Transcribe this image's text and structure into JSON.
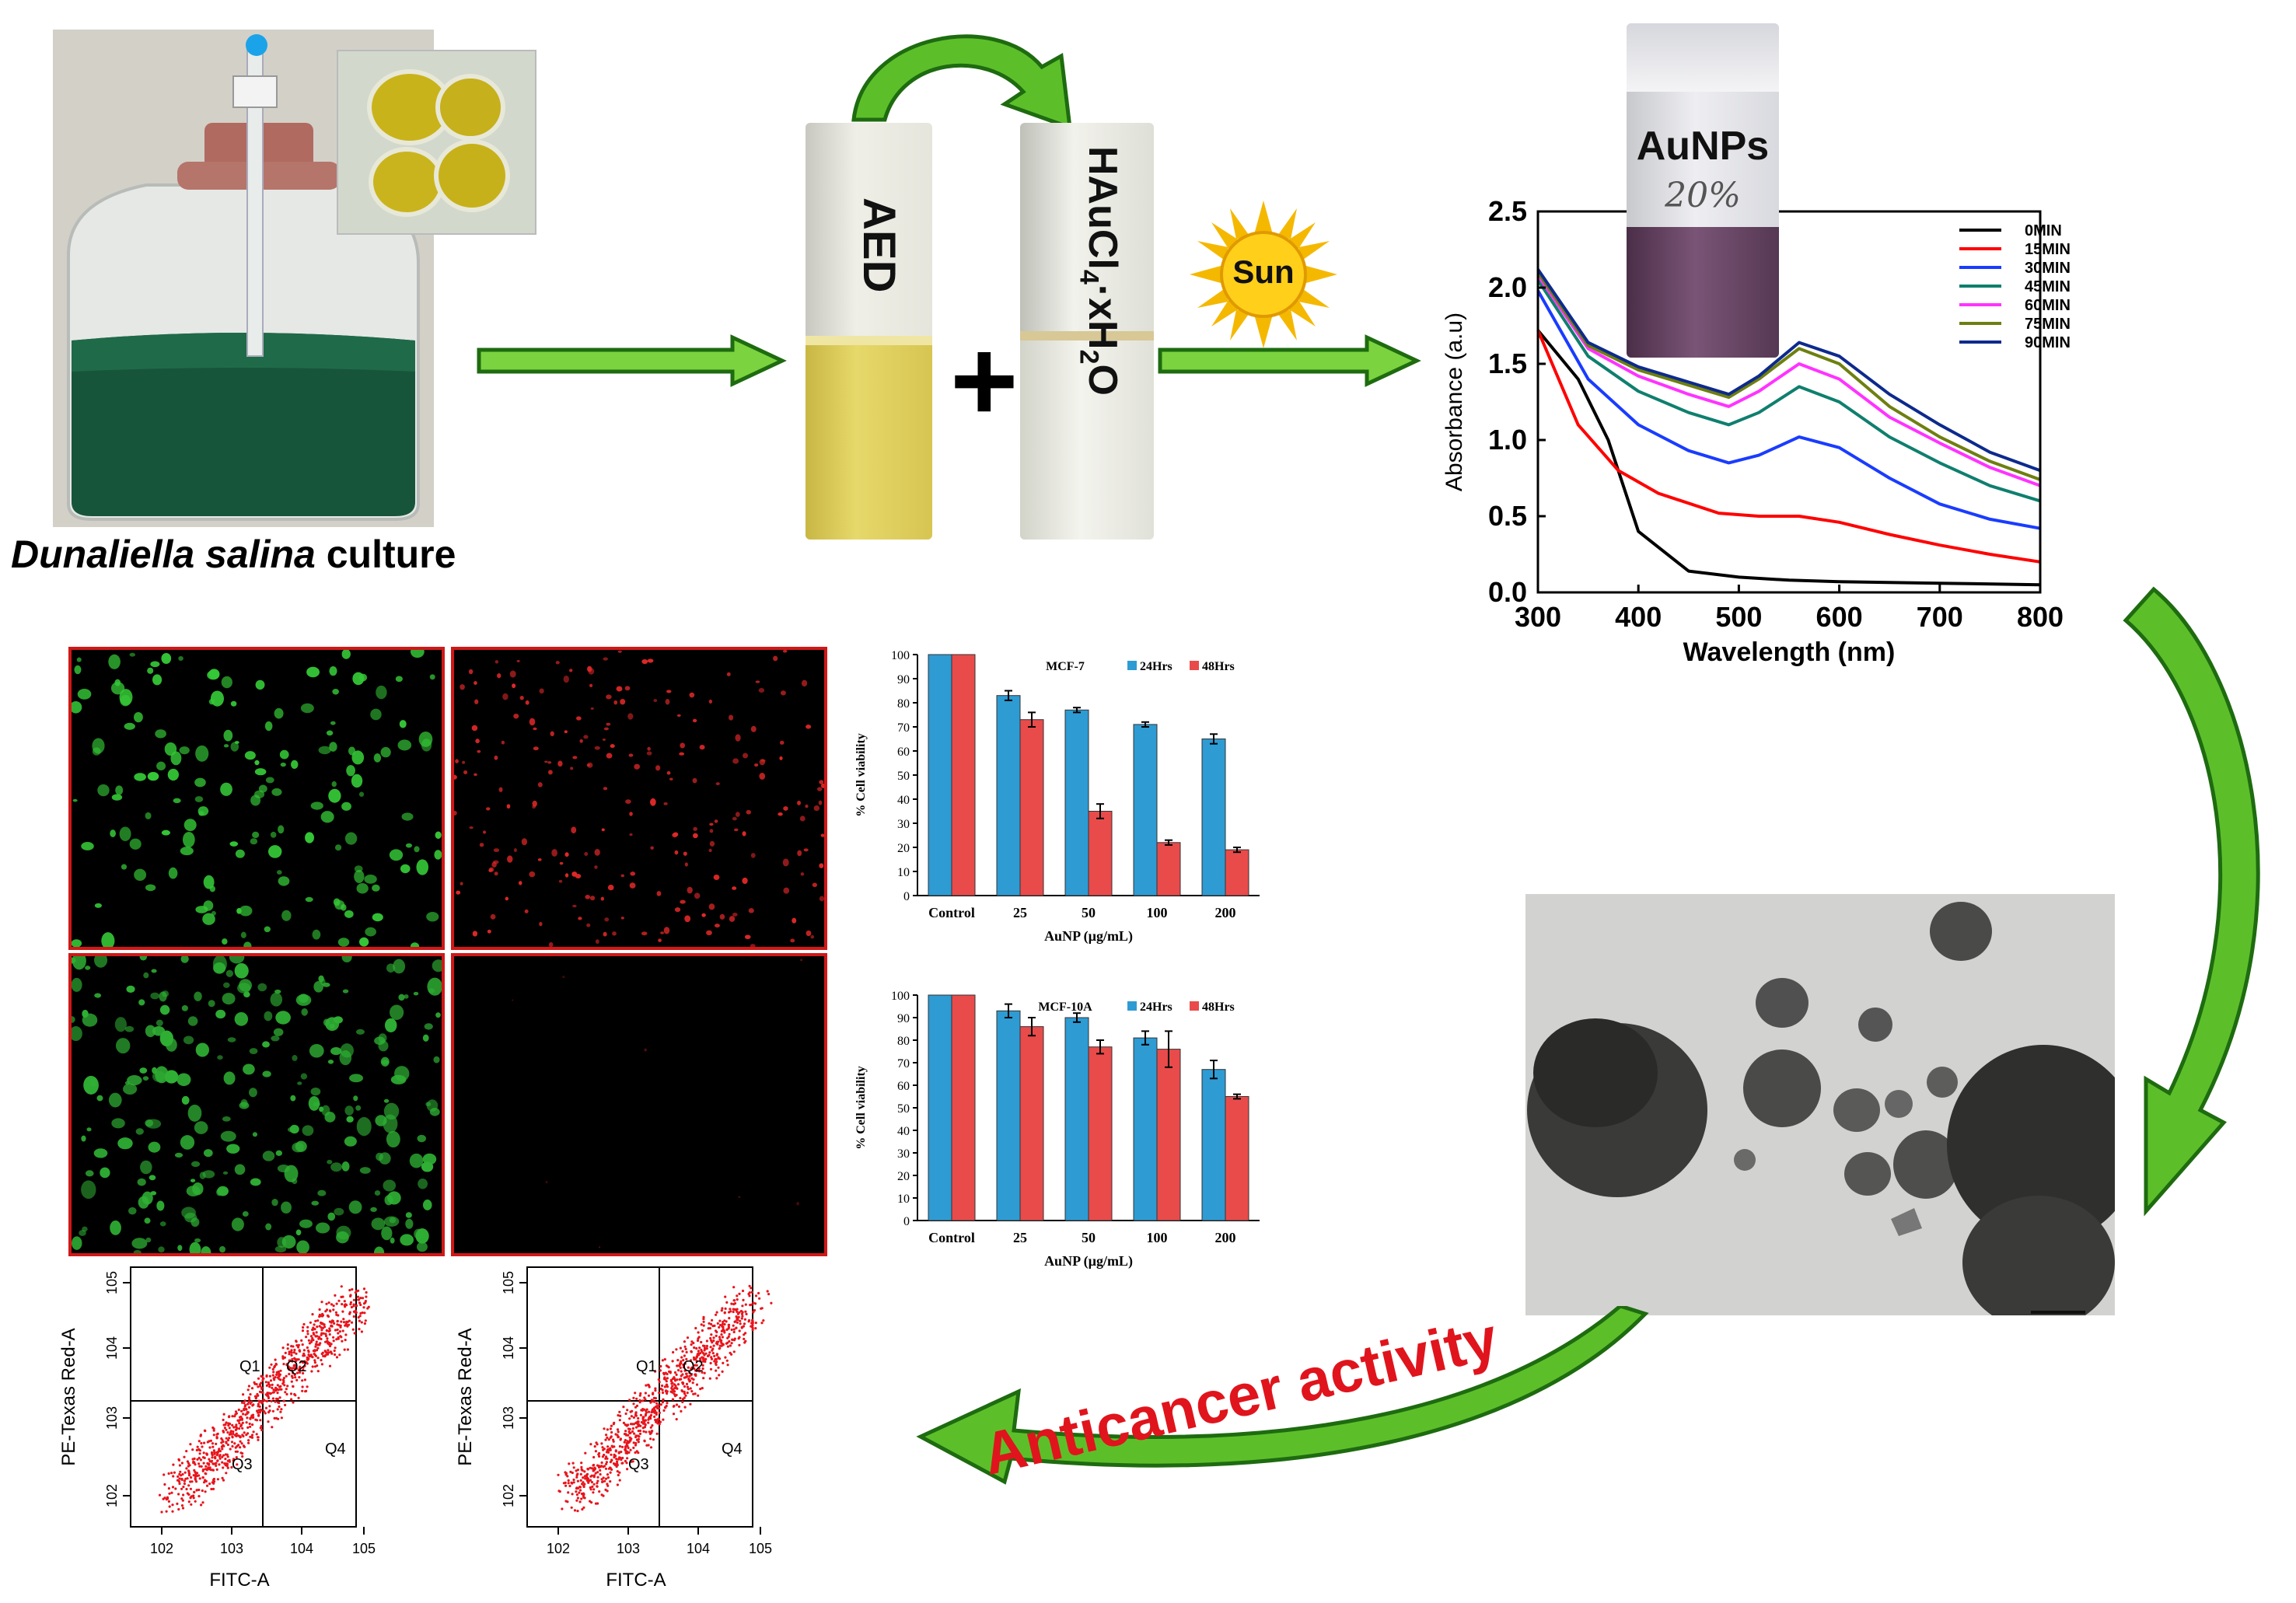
{
  "culture": {
    "caption_italic": "Dunaliella salina",
    "caption_rest": " culture"
  },
  "vials": {
    "aed_label": "AED",
    "gold_salt_label": "HAuCl4·xH2O",
    "gold_salt_main": "HAuCl",
    "gold_salt_sub4": "4",
    "gold_salt_mid": "·xH",
    "gold_salt_sub2": "2",
    "gold_salt_end": "O",
    "plus": "+",
    "sun_label": "Sun",
    "product_label": "AuNPs",
    "handwritten": "20%"
  },
  "activity_label": "Anticancer activity",
  "colors": {
    "arrow_green": "#5cbf2a",
    "arrow_dark": "#1e6b10",
    "annotation_red": "#e0141c",
    "bar_blue": "#2e9bd3",
    "bar_red": "#e94b4b"
  },
  "chart_data": [
    {
      "type": "line",
      "title": "",
      "xlabel": "Wavelength (nm)",
      "ylabel": "Absorbance (a.u)",
      "xlim": [
        300,
        800
      ],
      "ylim": [
        0.0,
        2.5
      ],
      "xticks": [
        "300",
        "400",
        "500",
        "600",
        "700",
        "800"
      ],
      "yticks": [
        "0.0",
        "0.5",
        "1.0",
        "1.5",
        "2.0",
        "2.5"
      ],
      "legend_position": "top-right",
      "series": [
        {
          "name": "0MIN",
          "color": "#000000",
          "x": [
            300,
            340,
            370,
            400,
            450,
            500,
            550,
            600,
            700,
            800
          ],
          "y": [
            1.72,
            1.4,
            1.0,
            0.4,
            0.14,
            0.1,
            0.08,
            0.07,
            0.06,
            0.05
          ]
        },
        {
          "name": "15MIN",
          "color": "#ff0000",
          "x": [
            300,
            340,
            380,
            420,
            480,
            520,
            560,
            600,
            650,
            700,
            750,
            800
          ],
          "y": [
            1.72,
            1.1,
            0.8,
            0.65,
            0.52,
            0.5,
            0.5,
            0.46,
            0.38,
            0.31,
            0.25,
            0.2
          ]
        },
        {
          "name": "30MIN",
          "color": "#1a3cff",
          "x": [
            300,
            350,
            400,
            450,
            490,
            520,
            560,
            600,
            650,
            700,
            750,
            800
          ],
          "y": [
            1.98,
            1.4,
            1.1,
            0.93,
            0.85,
            0.9,
            1.02,
            0.95,
            0.75,
            0.58,
            0.48,
            0.42
          ]
        },
        {
          "name": "45MIN",
          "color": "#0f7f6e",
          "x": [
            300,
            350,
            400,
            450,
            490,
            520,
            560,
            600,
            650,
            700,
            750,
            800
          ],
          "y": [
            2.05,
            1.55,
            1.32,
            1.18,
            1.1,
            1.18,
            1.35,
            1.25,
            1.02,
            0.85,
            0.7,
            0.6
          ]
        },
        {
          "name": "60MIN",
          "color": "#ff33ff",
          "x": [
            300,
            350,
            400,
            450,
            490,
            520,
            560,
            600,
            650,
            700,
            750,
            800
          ],
          "y": [
            2.08,
            1.6,
            1.42,
            1.3,
            1.22,
            1.32,
            1.5,
            1.4,
            1.15,
            0.98,
            0.82,
            0.7
          ]
        },
        {
          "name": "75MIN",
          "color": "#6e7f10",
          "x": [
            300,
            350,
            400,
            450,
            490,
            520,
            560,
            600,
            650,
            700,
            750,
            800
          ],
          "y": [
            2.1,
            1.62,
            1.46,
            1.36,
            1.28,
            1.4,
            1.6,
            1.5,
            1.22,
            1.02,
            0.86,
            0.74
          ]
        },
        {
          "name": "90MIN",
          "color": "#0d2a8c",
          "x": [
            300,
            350,
            400,
            450,
            490,
            520,
            560,
            600,
            650,
            700,
            750,
            800
          ],
          "y": [
            2.12,
            1.64,
            1.48,
            1.38,
            1.3,
            1.42,
            1.64,
            1.55,
            1.3,
            1.1,
            0.92,
            0.8
          ]
        }
      ]
    },
    {
      "type": "bar",
      "title": "MCF-7",
      "xlabel": "AuNP (µg/mL)",
      "ylabel": "% Cell viability",
      "ylim": [
        0,
        100
      ],
      "yticks": [
        "0",
        "10",
        "20",
        "30",
        "40",
        "50",
        "60",
        "70",
        "80",
        "90",
        "100"
      ],
      "categories": [
        "Control",
        "25",
        "50",
        "100",
        "200"
      ],
      "legend_position": "top-right",
      "series": [
        {
          "name": "24Hrs",
          "values": [
            100,
            83,
            77,
            71,
            65
          ],
          "errors": [
            0,
            2,
            1,
            1,
            2
          ]
        },
        {
          "name": "48Hrs",
          "values": [
            100,
            73,
            35,
            22,
            19
          ],
          "errors": [
            0,
            3,
            3,
            1,
            1
          ]
        }
      ]
    },
    {
      "type": "bar",
      "title": "MCF-10A",
      "xlabel": "AuNP (µg/mL)",
      "ylabel": "% Cell viability",
      "ylim": [
        0,
        100
      ],
      "yticks": [
        "0",
        "10",
        "20",
        "30",
        "40",
        "50",
        "60",
        "70",
        "80",
        "90",
        "100"
      ],
      "categories": [
        "Control",
        "25",
        "50",
        "100",
        "200"
      ],
      "legend_position": "top-right",
      "series": [
        {
          "name": "24Hrs",
          "values": [
            100,
            93,
            90,
            81,
            67
          ],
          "errors": [
            0,
            3,
            2,
            3,
            4
          ]
        },
        {
          "name": "48Hrs",
          "values": [
            100,
            86,
            77,
            76,
            55
          ],
          "errors": [
            0,
            4,
            3,
            8,
            1
          ]
        }
      ]
    },
    {
      "type": "scatter",
      "title": "",
      "xlabel": "FITC-A",
      "ylabel": "PE-Texas Red-A",
      "xticks": [
        "10^2",
        "10^3",
        "10^4",
        "10^5"
      ],
      "yticks": [
        "10^2",
        "10^3",
        "10^4",
        "10^5"
      ],
      "quadrants": [
        "Q1",
        "Q2",
        "Q3",
        "Q4"
      ]
    },
    {
      "type": "scatter",
      "title": "",
      "xlabel": "FITC-A",
      "ylabel": "PE-Texas Red-A",
      "xticks": [
        "10^2",
        "10^3",
        "10^4",
        "10^5"
      ],
      "yticks": [
        "10^2",
        "10^3",
        "10^4",
        "10^5"
      ],
      "quadrants": [
        "Q1",
        "Q2",
        "Q3",
        "Q4"
      ]
    }
  ]
}
